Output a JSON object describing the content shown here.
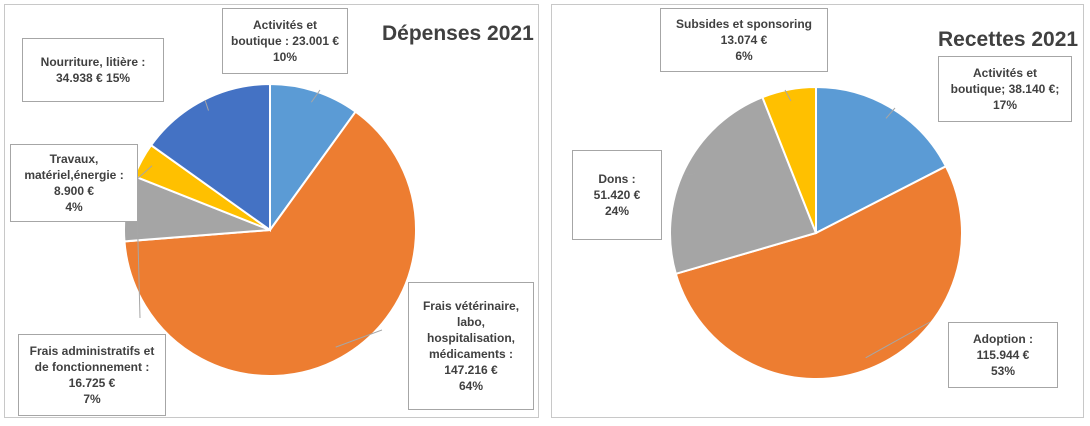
{
  "chart_data": [
    {
      "type": "pie",
      "title": "Dépenses 2021",
      "slices": [
        {
          "lines": [
            "Activités et",
            "boutique : 23.001 €",
            "10%"
          ],
          "value": 23001,
          "percent": 10,
          "color": "#5b9bd5"
        },
        {
          "lines": [
            "Frais vétérinaire,",
            "labo,",
            "hospitalisation,",
            "médicaments :",
            "147.216 €",
            "64%"
          ],
          "value": 147216,
          "percent": 64,
          "color": "#ed7d31"
        },
        {
          "lines": [
            "Frais administratifs et",
            "de fonctionnement :",
            "16.725 €",
            "7%"
          ],
          "value": 16725,
          "percent": 7,
          "color": "#a5a5a5"
        },
        {
          "lines": [
            "Travaux,",
            "matériel,énergie :",
            "8.900 €",
            "4%"
          ],
          "value": 8900,
          "percent": 4,
          "color": "#ffc000"
        },
        {
          "lines": [
            "Nourriture, litière :",
            "34.938 € 15%"
          ],
          "value": 34938,
          "percent": 15,
          "color": "#4472c4"
        }
      ]
    },
    {
      "type": "pie",
      "title": "Recettes 2021",
      "slices": [
        {
          "lines": [
            "Activités et",
            "boutique; 38.140 €;",
            "17%"
          ],
          "value": 38140,
          "percent": 17,
          "color": "#5b9bd5"
        },
        {
          "lines": [
            "Adoption :",
            "115.944 €",
            "53%"
          ],
          "value": 115944,
          "percent": 53,
          "color": "#ed7d31"
        },
        {
          "lines": [
            "Dons :",
            "51.420 €",
            "24%"
          ],
          "value": 51420,
          "percent": 24,
          "color": "#a5a5a5"
        },
        {
          "lines": [
            "Subsides et sponsoring",
            "13.074 €",
            "6%"
          ],
          "value": 13074,
          "percent": 6,
          "color": "#ffc000"
        }
      ]
    }
  ]
}
